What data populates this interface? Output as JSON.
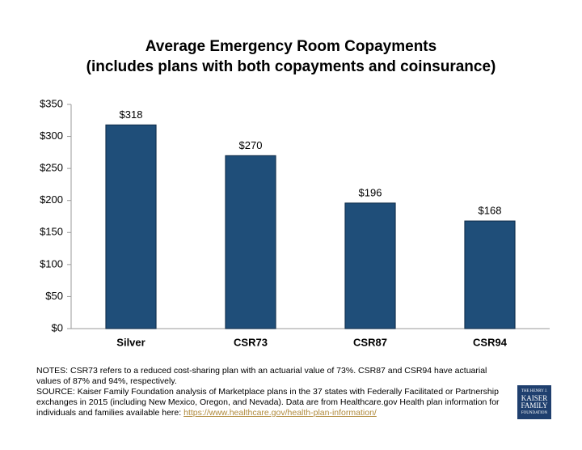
{
  "chart_data": {
    "type": "bar",
    "title": "Average Emergency Room Copayments",
    "subtitle": "(includes plans with both copayments and coinsurance)",
    "categories": [
      "Silver",
      "CSR73",
      "CSR87",
      "CSR94"
    ],
    "values": [
      318,
      270,
      196,
      168
    ],
    "value_labels": [
      "$318",
      "$270",
      "$196",
      "$168"
    ],
    "color": "#1f4e79",
    "ylim": [
      0,
      350
    ],
    "yticks": [
      {
        "value": 0,
        "label": "$0"
      },
      {
        "value": 50,
        "label": "$50"
      },
      {
        "value": 100,
        "label": "$100"
      },
      {
        "value": 150,
        "label": "$150"
      },
      {
        "value": 200,
        "label": "$200"
      },
      {
        "value": 250,
        "label": "$250"
      },
      {
        "value": 300,
        "label": "$300"
      },
      {
        "value": 350,
        "label": "$350"
      }
    ],
    "grid": false
  },
  "notes": "NOTES: CSR73 refers to a reduced cost-sharing plan with an actuarial value of 73%. CSR87 and CSR94 have actuarial values of 87% and 94%, respectively.",
  "source": "SOURCE: Kaiser Family Foundation analysis of Marketplace plans in the 37 states with Federally Facilitated or Partnership exchanges in 2015 (including New Mexico, Oregon, and Nevada). Data are from Healthcare.gov Health plan information for individuals and families available here:",
  "source_link": "https://www.healthcare.gov/health-plan-information/",
  "logo": [
    "THE HENRY J.",
    "KAISER",
    "FAMILY",
    "FOUNDATION"
  ]
}
